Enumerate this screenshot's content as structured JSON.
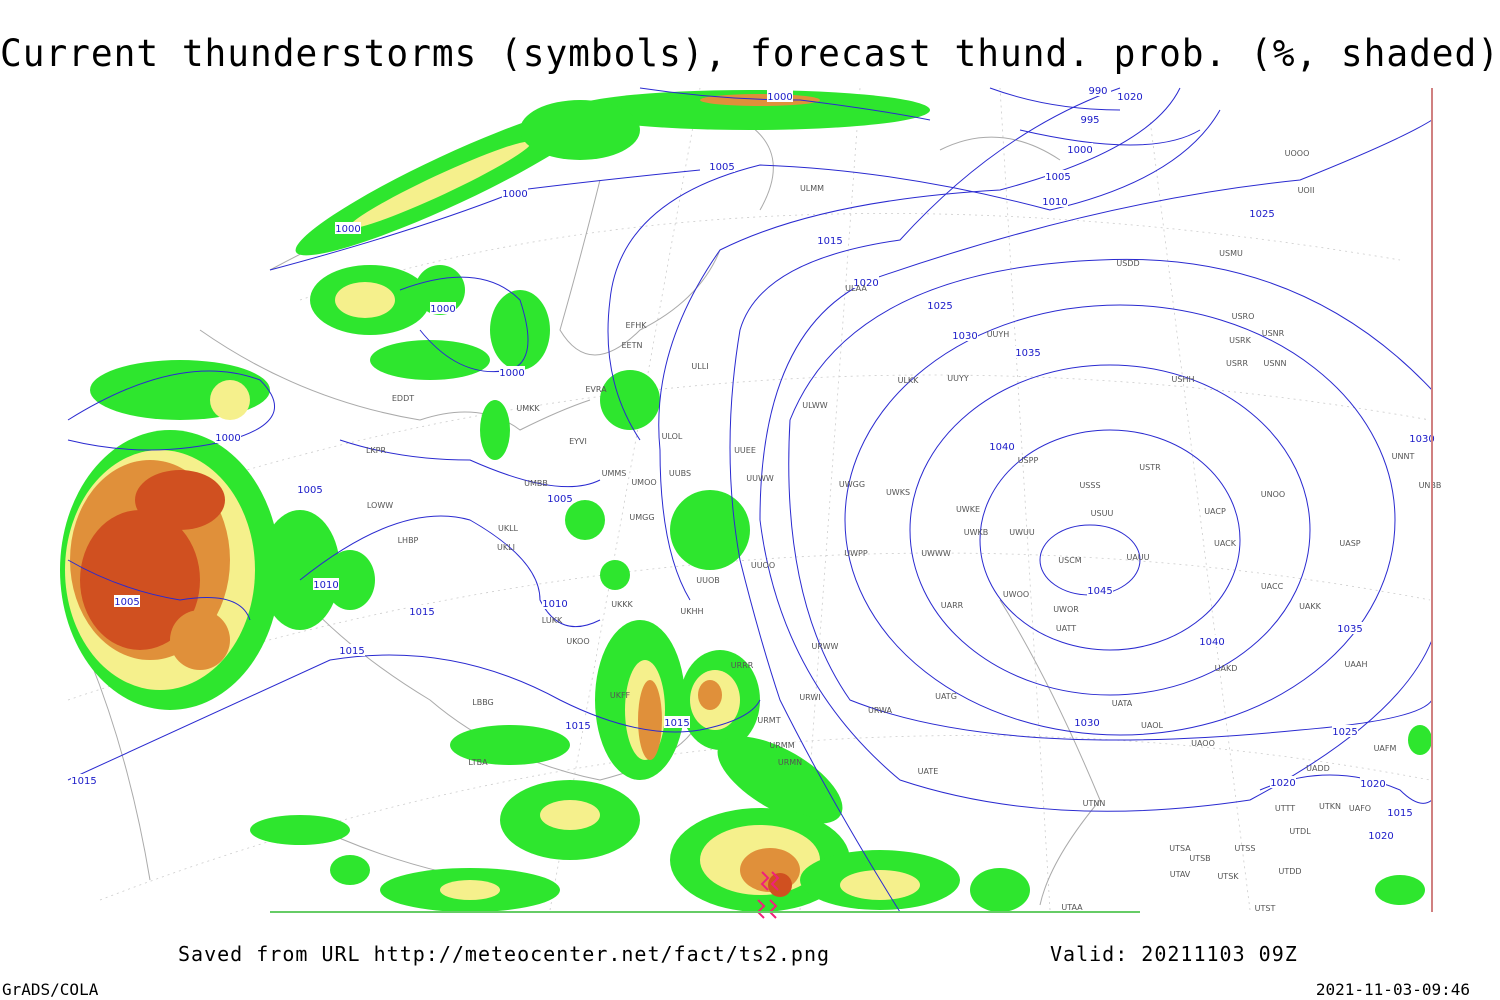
{
  "title": "Current thunderstorms (symbols), forecast thund. prob. (%, shaded)",
  "footer": {
    "saved_from": "Saved from URL http://meteocenter.net/fact/ts2.png",
    "valid": "Valid: 20211103 09Z",
    "credit": "GrADS/COLA",
    "timestamp": "2021-11-03-09:46"
  },
  "isobar_labels": [
    "1000",
    "995",
    "990",
    "1000",
    "1005",
    "1005",
    "1010",
    "1000",
    "1000",
    "1015",
    "1020",
    "1025",
    "1020",
    "1025",
    "1030",
    "1035",
    "1040",
    "1045",
    "1040",
    "1035",
    "1030",
    "1025",
    "1030",
    "1000",
    "1000",
    "1000",
    "1005",
    "1005",
    "1010",
    "1010",
    "1005",
    "1015",
    "1015",
    "1015",
    "1015",
    "1015",
    "1020",
    "1020",
    "1015",
    "1020"
  ],
  "stations": [
    "EDDT",
    "EFHK",
    "EETN",
    "EVRA",
    "EYVI",
    "UMMS",
    "UMKK",
    "LKPR",
    "LOWW",
    "LHBP",
    "ULLI",
    "ULOL",
    "UUEE",
    "UUWW",
    "UUOO",
    "UUOB",
    "UKHH",
    "UKKK",
    "UKOO",
    "LUKK",
    "LBBG",
    "UKFF",
    "URRR",
    "URMT",
    "URMM",
    "URMN",
    "LTBA",
    "UUYY",
    "ULKK",
    "ULWW",
    "UWGG",
    "UWKS",
    "UWKE",
    "UWKB",
    "UWUU",
    "UWWW",
    "UWPP",
    "UWOO",
    "UWOR",
    "UATT",
    "UARR",
    "UATG",
    "URWA",
    "URWI",
    "URWW",
    "UATE",
    "UTNN",
    "UAOO",
    "UAOL",
    "UATA",
    "UAKD",
    "UAKK",
    "UACC",
    "UASP",
    "UACK",
    "UACP",
    "USCM",
    "UAUU",
    "USUU",
    "USSS",
    "USTR",
    "USPP",
    "UNOO",
    "UNNT",
    "UNBB",
    "USHH",
    "USRR",
    "USNN",
    "USRK",
    "USNR",
    "USRO",
    "USMU",
    "USDD",
    "UOOO",
    "UOII",
    "ULAA",
    "ULMM",
    "UMBB",
    "UKLL",
    "UKLI",
    "UMGG",
    "UMOO",
    "UUBS",
    "UTSA",
    "UTSS",
    "UTSB",
    "UTAV",
    "UTSK",
    "UTST",
    "UTAA",
    "UTDL",
    "UTKN",
    "UAFO",
    "UTTT",
    "UAAH",
    "UAFM",
    "UADD",
    "UTDD",
    "UUYH"
  ]
}
